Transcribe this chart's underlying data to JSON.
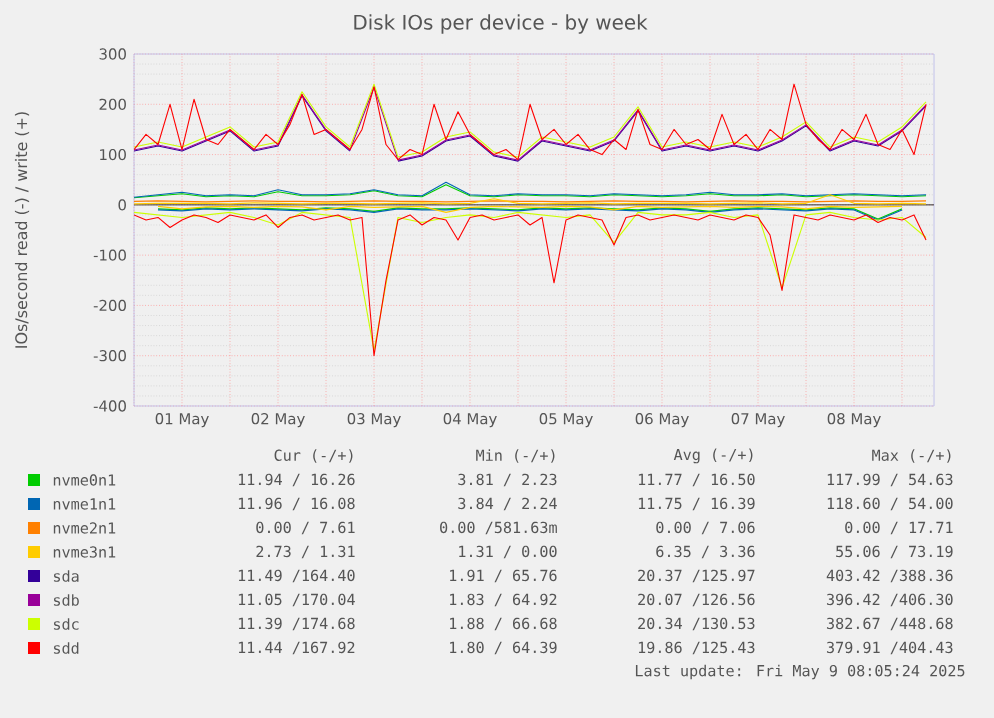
{
  "chart_data": {
    "type": "line",
    "title": "Disk IOs per device - by week",
    "ylabel": "IOs/second read (-) / write (+)",
    "xlim": [
      "2025-05-01T00:00",
      "2025-05-09T08:00"
    ],
    "xticks": [
      {
        "value": "2025-05-01T00:00",
        "label": null
      },
      {
        "value": "2025-05-01T12:00",
        "label": "01 May"
      },
      {
        "value": "2025-05-02T00:00",
        "label": null
      },
      {
        "value": "2025-05-02T12:00",
        "label": "02 May"
      },
      {
        "value": "2025-05-03T00:00",
        "label": null
      },
      {
        "value": "2025-05-03T12:00",
        "label": "03 May"
      },
      {
        "value": "2025-05-04T00:00",
        "label": null
      },
      {
        "value": "2025-05-04T12:00",
        "label": "04 May"
      },
      {
        "value": "2025-05-05T00:00",
        "label": null
      },
      {
        "value": "2025-05-05T12:00",
        "label": "05 May"
      },
      {
        "value": "2025-05-06T00:00",
        "label": null
      },
      {
        "value": "2025-05-06T12:00",
        "label": "06 May"
      },
      {
        "value": "2025-05-07T00:00",
        "label": null
      },
      {
        "value": "2025-05-07T12:00",
        "label": "07 May"
      },
      {
        "value": "2025-05-08T00:00",
        "label": null
      },
      {
        "value": "2025-05-08T12:00",
        "label": "08 May"
      },
      {
        "value": "2025-05-09T00:00",
        "label": null
      }
    ],
    "ylim": [
      -400,
      300
    ],
    "yticks": [
      -400,
      -300,
      -200,
      -100,
      0,
      100,
      200,
      300
    ],
    "grid": true,
    "legend": "bottom",
    "x": [
      "2025-05-01T00:00",
      "2025-05-01T06:00",
      "2025-05-01T12:00",
      "2025-05-01T18:00",
      "2025-05-02T00:00",
      "2025-05-02T06:00",
      "2025-05-02T12:00",
      "2025-05-02T18:00",
      "2025-05-03T00:00",
      "2025-05-03T06:00",
      "2025-05-03T12:00",
      "2025-05-03T18:00",
      "2025-05-04T00:00",
      "2025-05-04T06:00",
      "2025-05-04T12:00",
      "2025-05-04T18:00",
      "2025-05-05T00:00",
      "2025-05-05T06:00",
      "2025-05-05T12:00",
      "2025-05-05T18:00",
      "2025-05-06T00:00",
      "2025-05-06T06:00",
      "2025-05-06T12:00",
      "2025-05-06T18:00",
      "2025-05-07T00:00",
      "2025-05-07T06:00",
      "2025-05-07T12:00",
      "2025-05-07T18:00",
      "2025-05-08T00:00",
      "2025-05-08T06:00",
      "2025-05-08T12:00",
      "2025-05-08T18:00",
      "2025-05-09T00:00",
      "2025-05-09T06:00"
    ],
    "series": [
      {
        "color": "#00cc00",
        "values": [
          null,
          -8,
          -10,
          -6,
          -8,
          -6,
          -8,
          -10,
          -6,
          -8,
          -13,
          -6,
          -8,
          -8,
          -6,
          -8,
          -10,
          -6,
          -8,
          -6,
          -8,
          -10,
          -6,
          -8,
          -13,
          -8,
          -6,
          -8,
          -10,
          -6,
          -8,
          -28,
          -8,
          null
        ]
      },
      {
        "name": "nvme0n1",
        "color": "#00cc00",
        "values": [
          14,
          18,
          22,
          16,
          18,
          16,
          26,
          18,
          18,
          20,
          28,
          18,
          16,
          40,
          18,
          16,
          20,
          18,
          18,
          16,
          20,
          18,
          16,
          18,
          22,
          18,
          18,
          20,
          16,
          18,
          20,
          18,
          16,
          18
        ]
      },
      {
        "color": "#0066b3",
        "values": [
          null,
          -10,
          -12,
          -8,
          -10,
          -8,
          -10,
          -12,
          -8,
          -10,
          -15,
          -8,
          -10,
          -10,
          -8,
          -10,
          -12,
          -8,
          -10,
          -8,
          -10,
          -12,
          -8,
          -10,
          -15,
          -10,
          -8,
          -10,
          -12,
          -8,
          -10,
          -30,
          -10,
          null
        ]
      },
      {
        "name": "nvme1n1",
        "color": "#0066b3",
        "values": [
          15,
          20,
          25,
          18,
          20,
          18,
          30,
          20,
          20,
          22,
          30,
          20,
          18,
          45,
          20,
          18,
          22,
          20,
          20,
          18,
          22,
          20,
          18,
          20,
          25,
          20,
          20,
          22,
          18,
          20,
          22,
          20,
          18,
          20
        ]
      },
      {
        "name": "nvme2n1",
        "color": "#ff8000",
        "values": [
          7,
          8,
          7,
          6,
          7,
          8,
          7,
          7,
          6,
          7,
          8,
          7,
          7,
          6,
          7,
          8,
          7,
          7,
          6,
          7,
          8,
          7,
          7,
          6,
          7,
          8,
          7,
          7,
          6,
          7,
          8,
          7,
          7,
          8
        ]
      },
      {
        "color": "#ffcc00",
        "values": [
          null,
          -3,
          -8,
          -4,
          -3,
          -5,
          -3,
          -4,
          -10,
          -3,
          -5,
          -4,
          -3,
          -15,
          -5,
          -3,
          -4,
          -5,
          -3,
          -4,
          -10,
          -3,
          -5,
          -4,
          -3,
          -5,
          -3,
          -4,
          -8,
          -3,
          -5,
          -4,
          -3,
          null
        ]
      },
      {
        "name": "nvme3n1",
        "color": "#ffcc00",
        "values": [
          2,
          3,
          3,
          3,
          2,
          4,
          3,
          2,
          3,
          3,
          2,
          3,
          4,
          2,
          3,
          12,
          3,
          2,
          3,
          4,
          2,
          3,
          3,
          3,
          2,
          3,
          4,
          2,
          3,
          20,
          3,
          2,
          3,
          2
        ]
      },
      {
        "name": "sda",
        "color": "#330099",
        "values": [
          107,
          117,
          107,
          127,
          147,
          107,
          117,
          217,
          147,
          107,
          null,
          87,
          97,
          127,
          137,
          97,
          87,
          127,
          117,
          107,
          127,
          187,
          107,
          117,
          107,
          117,
          107,
          127,
          157,
          107,
          127,
          117,
          147,
          197
        ]
      },
      {
        "name": "sdb",
        "color": "#990099",
        "values": [
          109,
          119,
          109,
          129,
          149,
          109,
          119,
          219,
          149,
          109,
          234,
          89,
          99,
          129,
          139,
          99,
          89,
          129,
          119,
          109,
          129,
          189,
          109,
          119,
          109,
          119,
          109,
          129,
          159,
          109,
          129,
          119,
          149,
          199
        ]
      },
      {
        "color": "#ccff00",
        "values": [
          -15,
          -20,
          -25,
          -20,
          -15,
          -25,
          -40,
          -15,
          -20,
          -25,
          -290,
          -25,
          -35,
          -25,
          -20,
          -25,
          -15,
          -20,
          -25,
          -20,
          -75,
          -15,
          -20,
          -20,
          -15,
          -25,
          -20,
          -165,
          -20,
          -15,
          -25,
          -30,
          -25,
          -65
        ]
      },
      {
        "name": "sdc",
        "color": "#ccff00",
        "values": [
          115,
          125,
          115,
          135,
          155,
          115,
          125,
          225,
          155,
          115,
          240,
          95,
          105,
          135,
          145,
          105,
          95,
          135,
          125,
          115,
          135,
          195,
          115,
          125,
          115,
          125,
          115,
          135,
          165,
          115,
          135,
          125,
          155,
          205
        ]
      },
      {
        "color": "#ff0000",
        "x": [
          "2025-05-01T00:00",
          "2025-05-01T03:00",
          "2025-05-01T06:00",
          "2025-05-01T09:00",
          "2025-05-01T12:00",
          "2025-05-01T15:00",
          "2025-05-01T18:00",
          "2025-05-01T21:00",
          "2025-05-02T00:00",
          "2025-05-02T03:00",
          "2025-05-02T06:00",
          "2025-05-02T09:00",
          "2025-05-02T12:00",
          "2025-05-02T15:00",
          "2025-05-02T18:00",
          "2025-05-02T21:00",
          "2025-05-03T00:00",
          "2025-05-03T03:00",
          "2025-05-03T06:00",
          "2025-05-03T09:00",
          "2025-05-03T12:00",
          "2025-05-03T15:00",
          "2025-05-03T18:00",
          "2025-05-03T21:00",
          "2025-05-04T00:00",
          "2025-05-04T03:00",
          "2025-05-04T06:00",
          "2025-05-04T09:00",
          "2025-05-04T12:00",
          "2025-05-04T15:00",
          "2025-05-04T18:00",
          "2025-05-04T21:00",
          "2025-05-05T00:00",
          "2025-05-05T03:00",
          "2025-05-05T06:00",
          "2025-05-05T09:00",
          "2025-05-05T12:00",
          "2025-05-05T15:00",
          "2025-05-05T18:00",
          "2025-05-05T21:00",
          "2025-05-06T00:00",
          "2025-05-06T03:00",
          "2025-05-06T06:00",
          "2025-05-06T09:00",
          "2025-05-06T12:00",
          "2025-05-06T15:00",
          "2025-05-06T18:00",
          "2025-05-06T21:00",
          "2025-05-07T00:00",
          "2025-05-07T03:00",
          "2025-05-07T06:00",
          "2025-05-07T09:00",
          "2025-05-07T12:00",
          "2025-05-07T15:00",
          "2025-05-07T18:00",
          "2025-05-07T21:00",
          "2025-05-08T00:00",
          "2025-05-08T03:00",
          "2025-05-08T06:00",
          "2025-05-08T09:00",
          "2025-05-08T12:00",
          "2025-05-08T15:00",
          "2025-05-08T18:00",
          "2025-05-08T21:00",
          "2025-05-09T00:00",
          "2025-05-09T03:00",
          "2025-05-09T06:00"
        ],
        "values": [
          -20,
          -30,
          -25,
          -45,
          -30,
          -20,
          -25,
          -35,
          -20,
          -25,
          -30,
          -20,
          -45,
          -25,
          -20,
          -30,
          -25,
          -20,
          -30,
          -25,
          -300,
          -150,
          -30,
          -20,
          -40,
          -25,
          -30,
          -70,
          -25,
          -20,
          -30,
          -25,
          -20,
          -40,
          -25,
          -155,
          -30,
          -20,
          -25,
          -30,
          -80,
          -25,
          -20,
          -30,
          -25,
          -20,
          -25,
          -30,
          -20,
          -25,
          -30,
          -20,
          -25,
          -60,
          -170,
          -20,
          -25,
          -30,
          -20,
          -25,
          -30,
          -20,
          -35,
          -25,
          -30,
          -20,
          -70
        ]
      },
      {
        "name": "sdd",
        "color": "#ff0000",
        "x": [
          "2025-05-01T00:00",
          "2025-05-01T03:00",
          "2025-05-01T06:00",
          "2025-05-01T09:00",
          "2025-05-01T12:00",
          "2025-05-01T15:00",
          "2025-05-01T18:00",
          "2025-05-01T21:00",
          "2025-05-02T00:00",
          "2025-05-02T03:00",
          "2025-05-02T06:00",
          "2025-05-02T09:00",
          "2025-05-02T12:00",
          "2025-05-02T15:00",
          "2025-05-02T18:00",
          "2025-05-02T21:00",
          "2025-05-03T00:00",
          "2025-05-03T03:00",
          "2025-05-03T06:00",
          "2025-05-03T09:00",
          "2025-05-03T12:00",
          "2025-05-03T15:00",
          "2025-05-03T18:00",
          "2025-05-03T21:00",
          "2025-05-04T00:00",
          "2025-05-04T03:00",
          "2025-05-04T06:00",
          "2025-05-04T09:00",
          "2025-05-04T12:00",
          "2025-05-04T15:00",
          "2025-05-04T18:00",
          "2025-05-04T21:00",
          "2025-05-05T00:00",
          "2025-05-05T03:00",
          "2025-05-05T06:00",
          "2025-05-05T09:00",
          "2025-05-05T12:00",
          "2025-05-05T15:00",
          "2025-05-05T18:00",
          "2025-05-05T21:00",
          "2025-05-06T00:00",
          "2025-05-06T03:00",
          "2025-05-06T06:00",
          "2025-05-06T09:00",
          "2025-05-06T12:00",
          "2025-05-06T15:00",
          "2025-05-06T18:00",
          "2025-05-06T21:00",
          "2025-05-07T00:00",
          "2025-05-07T03:00",
          "2025-05-07T06:00",
          "2025-05-07T09:00",
          "2025-05-07T12:00",
          "2025-05-07T15:00",
          "2025-05-07T18:00",
          "2025-05-07T21:00",
          "2025-05-08T00:00",
          "2025-05-08T03:00",
          "2025-05-08T06:00",
          "2025-05-08T09:00",
          "2025-05-08T12:00",
          "2025-05-08T15:00",
          "2025-05-08T18:00",
          "2025-05-08T21:00",
          "2025-05-09T00:00",
          "2025-05-09T03:00",
          "2025-05-09T06:00"
        ],
        "values": [
          110,
          140,
          120,
          200,
          110,
          210,
          130,
          120,
          150,
          130,
          110,
          140,
          120,
          160,
          220,
          140,
          150,
          130,
          110,
          150,
          235,
          120,
          90,
          110,
          100,
          200,
          130,
          185,
          140,
          120,
          100,
          110,
          90,
          200,
          130,
          150,
          120,
          140,
          110,
          100,
          130,
          110,
          190,
          120,
          110,
          150,
          120,
          130,
          110,
          180,
          120,
          140,
          110,
          150,
          130,
          240,
          160,
          130,
          110,
          150,
          130,
          180,
          120,
          110,
          150,
          100,
          200
        ]
      }
    ],
    "annotations": [
      "Cur (-/+)",
      "Min (-/+)",
      "Avg (-/+)",
      "Max (-/+)",
      "11.94 / 16.26",
      "3.81 / 2.23",
      "11.77 / 16.50",
      "117.99 / 54.63",
      "11.96 / 16.08",
      "3.84 / 2.24",
      "11.75 / 16.39",
      "118.60 / 54.00",
      "0.00 / 7.61",
      "0.00 /581.63m",
      "0.00 / 7.06",
      "0.00 / 17.71",
      "2.73 / 1.31",
      "1.31 / 0.00",
      "6.35 / 3.36",
      "55.06 / 73.19",
      "11.49 /164.40",
      "1.91 / 65.76",
      "20.37 /125.97",
      "403.42 /388.36",
      "11.05 /170.04",
      "1.83 / 64.92",
      "20.07 /126.56",
      "396.42 /406.30",
      "11.39 /174.68",
      "1.88 / 66.68",
      "20.34 /130.53",
      "382.67 /448.68",
      "11.44 /167.92",
      "1.80 / 64.39",
      "19.86 /125.43",
      "379.91 /404.43",
      "Last update: Fri May 9 08:05:24 2025"
    ]
  }
}
